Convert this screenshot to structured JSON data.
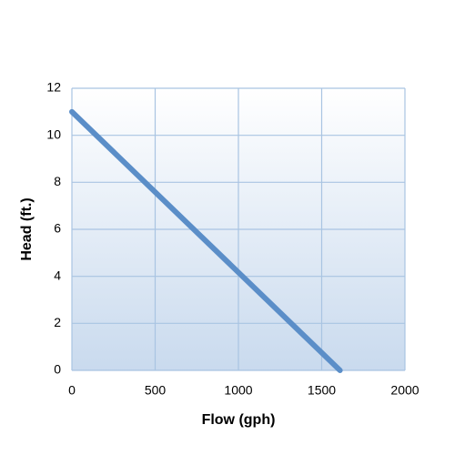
{
  "chart_data": {
    "type": "line",
    "x_label": "Flow (gph)",
    "y_label": "Head (ft.)",
    "x": [
      0,
      1610
    ],
    "series": [
      {
        "color": "#5b8ec8",
        "values": [
          11,
          0
        ]
      }
    ],
    "xlim": [
      0,
      2000
    ],
    "xticks": [
      0,
      500,
      1000,
      1500,
      2000
    ],
    "ylim": [
      0,
      12
    ],
    "yticks": [
      0,
      2,
      4,
      6,
      8,
      10,
      12
    ],
    "grid": true
  }
}
